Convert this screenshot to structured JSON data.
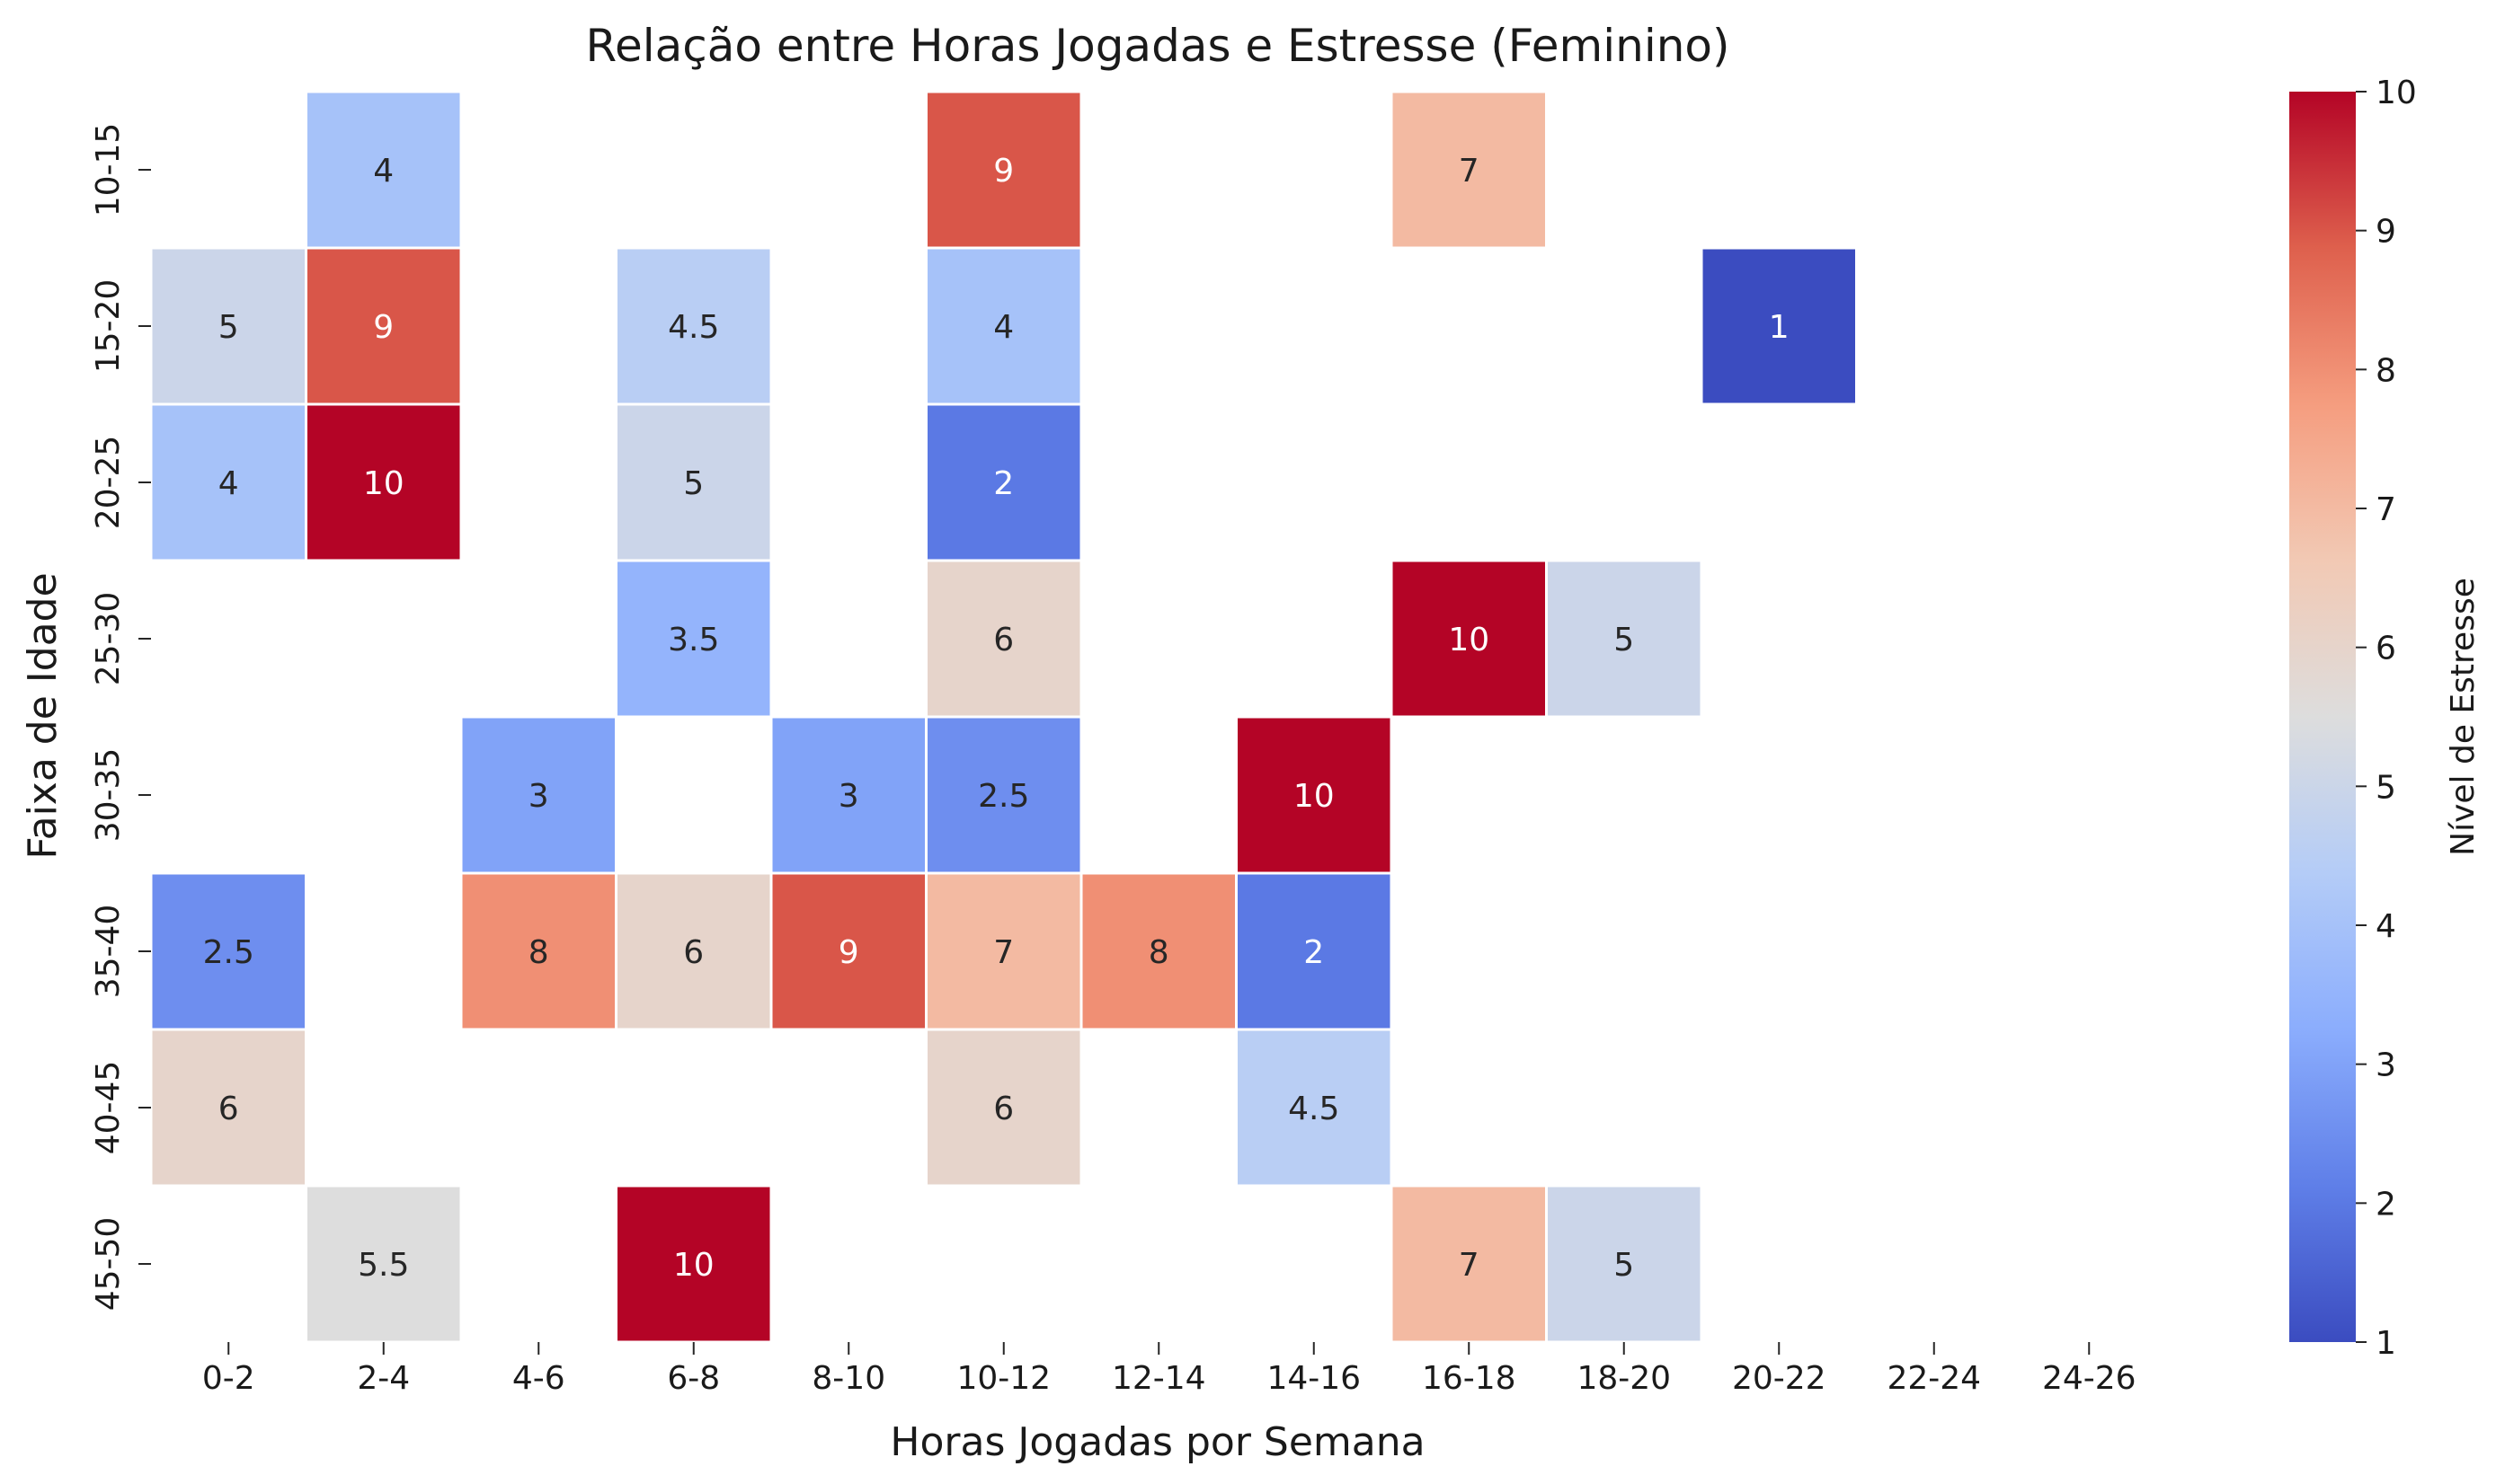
{
  "chart_data": {
    "type": "heatmap",
    "title": "Relação entre Horas Jogadas e Estresse (Feminino)",
    "xlabel": "Horas Jogadas por Semana",
    "ylabel": "Faixa de Idade",
    "colorbar_label": "Nível de Estresse",
    "colormap": "coolwarm",
    "color_range": [
      1,
      10
    ],
    "colorbar_ticks": [
      "1",
      "2",
      "3",
      "4",
      "5",
      "6",
      "7",
      "8",
      "9",
      "10"
    ],
    "grid": false,
    "x_categories": [
      "0-2",
      "2-4",
      "4-6",
      "6-8",
      "8-10",
      "10-12",
      "12-14",
      "14-16",
      "16-18",
      "18-20",
      "20-22",
      "22-24",
      "24-26"
    ],
    "y_categories": [
      "10-15",
      "15-20",
      "20-25",
      "25-30",
      "30-35",
      "35-40",
      "40-45",
      "45-50"
    ],
    "values": [
      [
        null,
        4,
        null,
        null,
        null,
        9,
        null,
        null,
        7,
        null,
        null,
        null,
        null
      ],
      [
        5,
        9,
        null,
        4.5,
        null,
        4,
        null,
        null,
        null,
        null,
        1,
        null,
        null
      ],
      [
        4,
        10,
        null,
        5,
        null,
        2,
        null,
        null,
        null,
        null,
        null,
        null,
        null
      ],
      [
        null,
        null,
        null,
        3.5,
        null,
        6,
        null,
        null,
        10,
        5,
        null,
        null,
        null
      ],
      [
        null,
        null,
        3,
        null,
        3,
        2.5,
        null,
        10,
        null,
        null,
        null,
        null,
        null
      ],
      [
        2.5,
        null,
        8,
        6,
        9,
        7,
        8,
        2,
        null,
        null,
        null,
        null,
        null
      ],
      [
        6,
        null,
        null,
        null,
        null,
        6,
        null,
        4.5,
        null,
        null,
        null,
        null,
        null
      ],
      [
        null,
        5.5,
        null,
        10,
        null,
        null,
        null,
        null,
        7,
        5,
        null,
        null,
        null
      ]
    ]
  }
}
